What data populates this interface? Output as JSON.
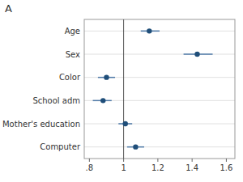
{
  "chart_data": {
    "type": "forest",
    "title": "A",
    "orientation": "horizontal",
    "categories": [
      "Age",
      "Sex",
      "Color",
      "School adm",
      "Mother's education",
      "Computer"
    ],
    "values": [
      1.15,
      1.43,
      0.9,
      0.88,
      1.01,
      1.07
    ],
    "ci_low": [
      1.1,
      1.35,
      0.85,
      0.82,
      0.97,
      1.02
    ],
    "ci_high": [
      1.21,
      1.52,
      0.95,
      0.93,
      1.05,
      1.12
    ],
    "xlim": [
      0.77,
      1.65
    ],
    "xticks": [
      {
        "value": 0.8,
        "label": ".8"
      },
      1,
      1.2,
      1.4,
      1.6
    ],
    "reference_line": 1,
    "grid": true
  }
}
